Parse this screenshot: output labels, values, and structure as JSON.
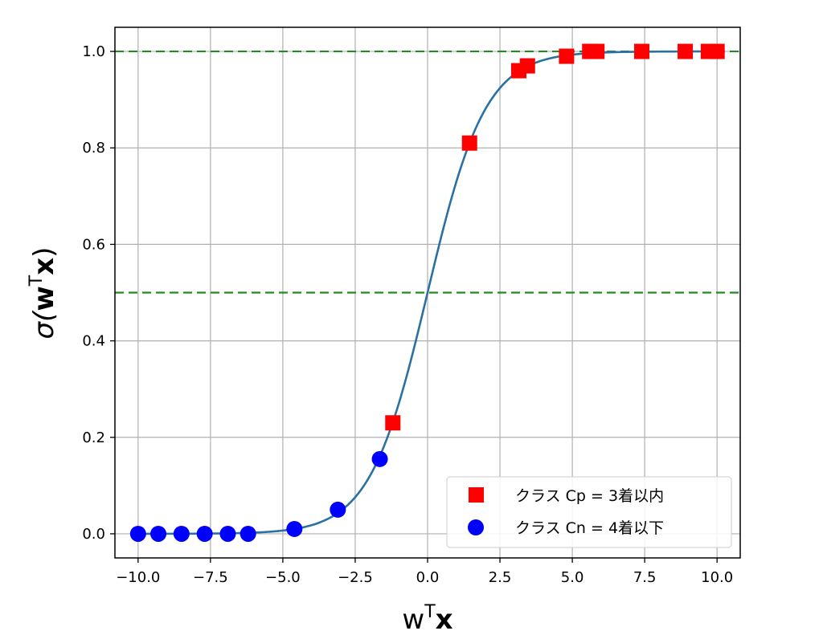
{
  "chart_data": {
    "type": "scatter",
    "title": "",
    "xlabel": {
      "base": "w",
      "superscript": "T",
      "bold": "x"
    },
    "ylabel": {
      "prefix": "σ(",
      "bold_w": "w",
      "superscript": "T",
      "bold_x": "x",
      "suffix": ")"
    },
    "xlim": [
      -10.8,
      10.8
    ],
    "ylim": [
      -0.05,
      1.05
    ],
    "x_ticks": [
      -10.0,
      -7.5,
      -5.0,
      -2.5,
      0.0,
      2.5,
      5.0,
      7.5,
      10.0
    ],
    "x_tick_labels": [
      "−10.0",
      "−7.5",
      "−5.0",
      "−2.5",
      "0.0",
      "2.5",
      "5.0",
      "7.5",
      "10.0"
    ],
    "y_ticks": [
      0.0,
      0.2,
      0.4,
      0.6,
      0.8,
      1.0
    ],
    "y_tick_labels": [
      "0.0",
      "0.2",
      "0.4",
      "0.6",
      "0.8",
      "1.0"
    ],
    "grid": true,
    "curve": {
      "function": "sigmoid",
      "x_range": [
        -10,
        10
      ],
      "color": "#2a71a3"
    },
    "reference_lines": [
      {
        "y": 1.0,
        "color": "#228b22",
        "style": "dashed"
      },
      {
        "y": 0.5,
        "color": "#228b22",
        "style": "dashed"
      }
    ],
    "series": [
      {
        "name": "クラス Cp = 3着以内",
        "marker": "square",
        "color": "#ff0000",
        "points": [
          [
            -1.2,
            0.23
          ],
          [
            1.45,
            0.81
          ],
          [
            3.15,
            0.96
          ],
          [
            3.45,
            0.97
          ],
          [
            4.8,
            0.99
          ],
          [
            5.6,
            1.0
          ],
          [
            5.85,
            1.0
          ],
          [
            7.4,
            1.0
          ],
          [
            8.9,
            1.0
          ],
          [
            9.7,
            1.0
          ],
          [
            10.0,
            1.0
          ]
        ]
      },
      {
        "name": "クラス Cn = 4着以下",
        "marker": "circle",
        "color": "#0000ff",
        "points": [
          [
            -10.0,
            0.0
          ],
          [
            -9.3,
            0.0
          ],
          [
            -8.5,
            0.0
          ],
          [
            -7.7,
            0.0
          ],
          [
            -6.9,
            0.0
          ],
          [
            -6.2,
            0.0
          ],
          [
            -4.6,
            0.01
          ],
          [
            -3.1,
            0.05
          ],
          [
            -1.65,
            0.155
          ]
        ]
      }
    ],
    "legend": {
      "placement": "bottom-right"
    }
  }
}
